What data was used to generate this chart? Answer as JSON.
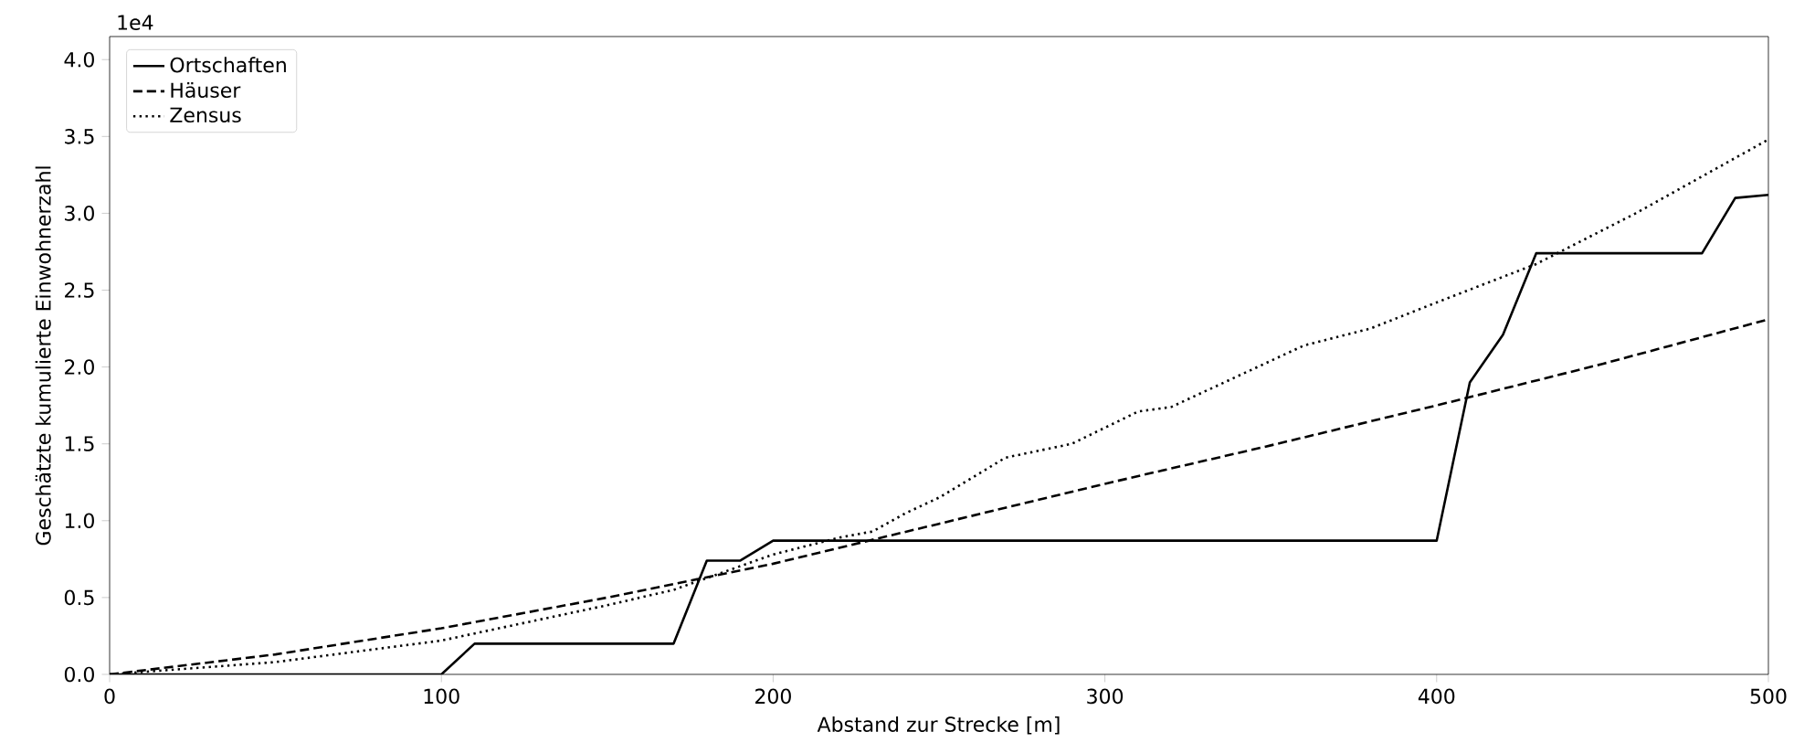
{
  "chart_data": {
    "type": "line",
    "xlabel": "Abstand zur Strecke [m]",
    "ylabel": "Geschätzte kumulierte Einwohnerzahl",
    "annotations": [
      "1e4"
    ],
    "xlim": [
      0,
      500
    ],
    "ylim": [
      0,
      4.15
    ],
    "xticks": [
      0,
      100,
      200,
      300,
      400,
      500
    ],
    "yticks": [
      {
        "value": 0,
        "label": "0.0"
      },
      {
        "value": 0.5,
        "label": "0.5"
      },
      {
        "value": 1,
        "label": "1.0"
      },
      {
        "value": 1.5,
        "label": "1.5"
      },
      {
        "value": 2,
        "label": "2.0"
      },
      {
        "value": 2.5,
        "label": "2.5"
      },
      {
        "value": 3,
        "label": "3.0"
      },
      {
        "value": 3.5,
        "label": "3.5"
      },
      {
        "value": 4,
        "label": "4.0"
      }
    ],
    "legend": "top left",
    "grid": false,
    "marker": "none",
    "series": [
      {
        "name": "Ortschaften",
        "color": "#000000",
        "line_style": "solid",
        "x": [
          0,
          100,
          110,
          170,
          180,
          190,
          200,
          400,
          410,
          420,
          430,
          480,
          490,
          500
        ],
        "values": [
          0,
          0,
          0.2,
          0.2,
          0.74,
          0.74,
          0.87,
          0.87,
          1.9,
          2.21,
          2.74,
          2.74,
          3.1,
          3.12
        ]
      },
      {
        "name": "Häuser",
        "color": "#000000",
        "line_style": "dashed",
        "x": [
          0,
          50,
          100,
          150,
          200,
          250,
          300,
          350,
          400,
          450,
          500
        ],
        "values": [
          0,
          0.13,
          0.3,
          0.5,
          0.72,
          0.98,
          1.24,
          1.49,
          1.75,
          2.02,
          2.31
        ]
      },
      {
        "name": "Zensus",
        "color": "#000000",
        "line_style": "dotted",
        "x": [
          0,
          50,
          100,
          150,
          170,
          200,
          220,
          230,
          240,
          250,
          270,
          290,
          310,
          320,
          360,
          380,
          400,
          430,
          460,
          500
        ],
        "values": [
          0,
          0.08,
          0.22,
          0.45,
          0.55,
          0.78,
          0.89,
          0.93,
          1.05,
          1.15,
          1.41,
          1.5,
          1.71,
          1.74,
          2.14,
          2.25,
          2.42,
          2.67,
          3.0,
          3.48
        ]
      }
    ]
  }
}
